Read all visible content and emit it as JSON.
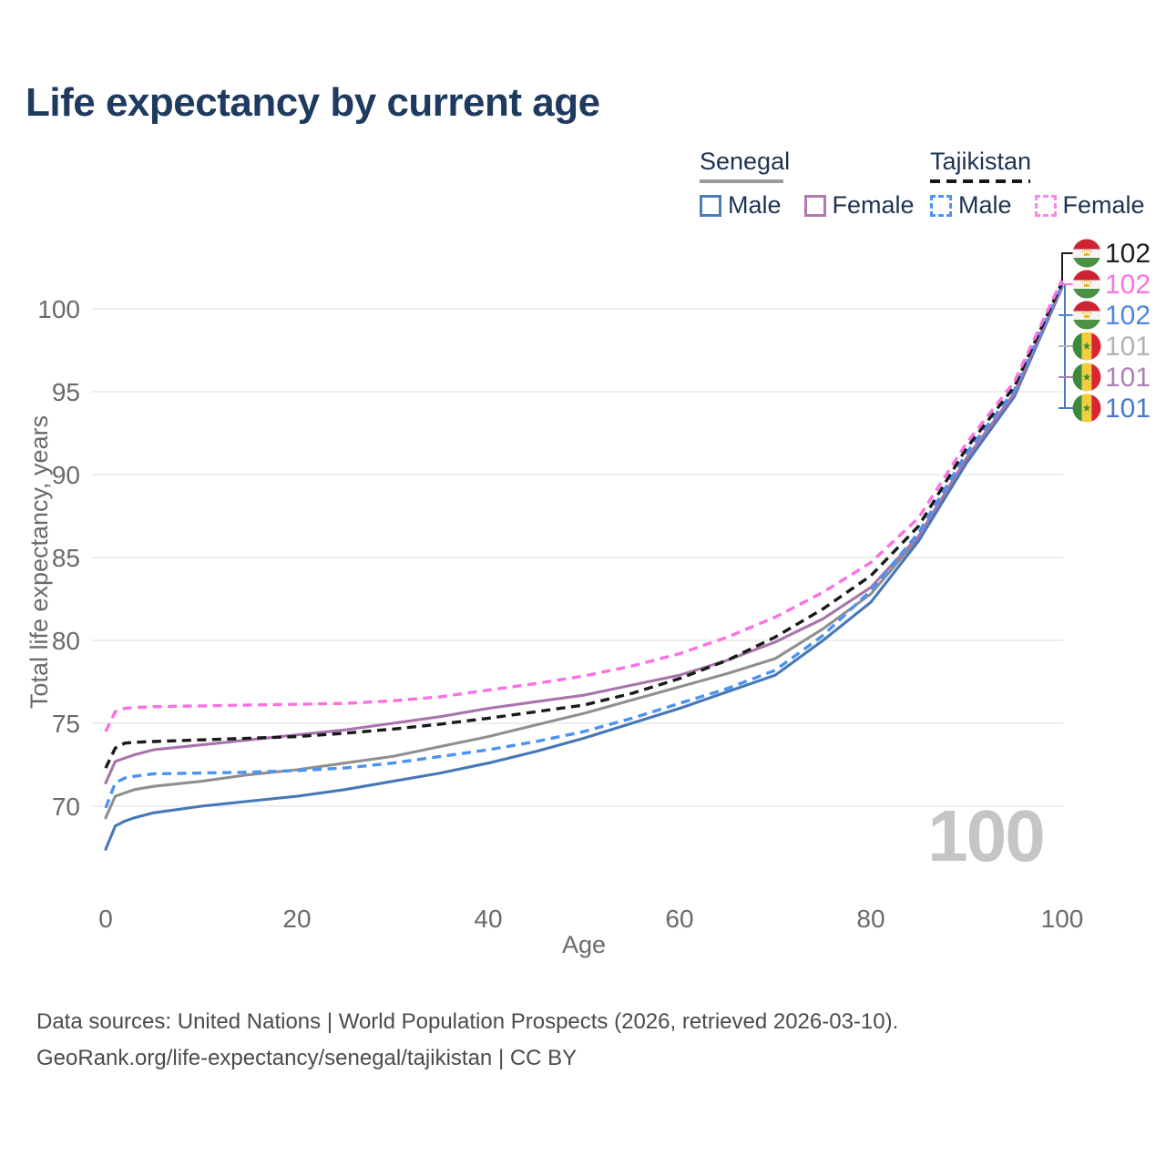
{
  "title": "Life expectancy by current age",
  "watermark": {
    "value": "100"
  },
  "legend": {
    "groups": [
      {
        "id": "senegal",
        "label": "Senegal",
        "line_style": "solid",
        "underline_color": "#9a9a9a",
        "items": [
          {
            "label": "Male",
            "color": "#4c7cba",
            "style": "solid"
          },
          {
            "label": "Female",
            "color": "#b279ae",
            "style": "solid"
          }
        ]
      },
      {
        "id": "tajikistan",
        "label": "Tajikistan",
        "line_style": "dashed",
        "underline_color": "#161616",
        "items": [
          {
            "label": "Male",
            "color": "#4d95f7",
            "style": "dashed"
          },
          {
            "label": "Female",
            "color": "#fc85e8",
            "style": "dashed"
          }
        ]
      }
    ]
  },
  "end_labels": [
    {
      "country": "tajikistan",
      "flag": "tajikistan-flag",
      "value": "102",
      "color": "#1f1f1f",
      "series": "Tajikistan Both sexes"
    },
    {
      "country": "tajikistan",
      "flag": "tajikistan-flag",
      "value": "102",
      "color": "#fb71e3",
      "series": "Tajikistan Female"
    },
    {
      "country": "tajikistan",
      "flag": "tajikistan-flag",
      "value": "102",
      "color": "#4d87e0",
      "series": "Tajikistan Male"
    },
    {
      "country": "senegal",
      "flag": "senegal-flag",
      "value": "101",
      "color": "#b3b3b3",
      "series": "Senegal Both sexes"
    },
    {
      "country": "senegal",
      "flag": "senegal-flag",
      "value": "101",
      "color": "#ae7fb6",
      "series": "Senegal Female"
    },
    {
      "country": "senegal",
      "flag": "senegal-flag",
      "value": "101",
      "color": "#4a79c4",
      "series": "Senegal Male"
    }
  ],
  "footer": {
    "line1": "Data sources: United Nations | World Population Prospects (2026, retrieved 2026-03-10).",
    "line2": "GeoRank.org/life-expectancy/senegal/tajikistan | CC BY"
  },
  "chart_data": {
    "type": "line",
    "title": "Life expectancy by current age",
    "xlabel": "Age",
    "ylabel": "Total life expectancy, years",
    "x_ticks": [
      0,
      20,
      40,
      60,
      80,
      100
    ],
    "y_ticks": [
      70,
      75,
      80,
      85,
      90,
      95,
      100
    ],
    "xlim": [
      0,
      100
    ],
    "grid": "horizontal",
    "legend_position": "top-right",
    "ages": [
      0,
      1,
      2,
      3,
      5,
      10,
      15,
      20,
      25,
      30,
      35,
      40,
      45,
      50,
      55,
      60,
      65,
      70,
      75,
      80,
      85,
      90,
      95,
      100
    ],
    "series": [
      {
        "id": "senegal-both",
        "name": "Senegal Both sexes",
        "country": "Senegal",
        "sex": "both",
        "style": "solid",
        "color": "#8f8f8f",
        "values": [
          69.3,
          70.6,
          70.8,
          71.0,
          71.2,
          71.5,
          71.9,
          72.2,
          72.6,
          73.0,
          73.6,
          74.2,
          74.9,
          75.6,
          76.4,
          77.2,
          78.0,
          78.9,
          80.7,
          82.8,
          86.2,
          90.9,
          94.8,
          101.35
        ]
      },
      {
        "id": "senegal-male",
        "name": "Senegal Male",
        "country": "Senegal",
        "sex": "male",
        "style": "solid",
        "color": "#4677b8",
        "values": [
          67.4,
          68.8,
          69.1,
          69.3,
          69.6,
          70.0,
          70.3,
          70.6,
          71.0,
          71.5,
          72.0,
          72.6,
          73.3,
          74.1,
          75.0,
          75.9,
          76.9,
          77.9,
          80.0,
          82.3,
          86.0,
          90.7,
          94.7,
          101.3
        ]
      },
      {
        "id": "senegal-female",
        "name": "Senegal Female",
        "country": "Senegal",
        "sex": "female",
        "style": "solid",
        "color": "#a874ac",
        "values": [
          71.4,
          72.7,
          72.9,
          73.1,
          73.4,
          73.7,
          74.0,
          74.3,
          74.6,
          75.0,
          75.4,
          75.9,
          76.3,
          76.7,
          77.3,
          77.9,
          78.8,
          79.9,
          81.3,
          83.2,
          86.3,
          91.0,
          94.9,
          101.4
        ]
      },
      {
        "id": "tajikistan-male",
        "name": "Tajikistan Male",
        "country": "Tajikistan",
        "sex": "male",
        "style": "dashed",
        "color": "#4b93f0",
        "values": [
          69.9,
          71.4,
          71.7,
          71.8,
          71.95,
          72.0,
          72.05,
          72.15,
          72.3,
          72.6,
          73.0,
          73.4,
          73.9,
          74.5,
          75.3,
          76.2,
          77.1,
          78.2,
          80.3,
          83.0,
          86.5,
          91.3,
          95.1,
          101.5
        ]
      },
      {
        "id": "tajikistan-both",
        "name": "Tajikistan Both sexes",
        "country": "Tajikistan",
        "sex": "both",
        "style": "dashed",
        "color": "#1a1a1a",
        "values": [
          72.3,
          73.5,
          73.8,
          73.85,
          73.9,
          74.0,
          74.1,
          74.2,
          74.4,
          74.65,
          74.95,
          75.3,
          75.7,
          76.1,
          76.8,
          77.7,
          78.8,
          80.2,
          81.9,
          83.9,
          86.9,
          91.6,
          95.3,
          101.6
        ]
      },
      {
        "id": "tajikistan-female",
        "name": "Tajikistan Female",
        "country": "Tajikistan",
        "sex": "female",
        "style": "dashed",
        "color": "#fb71e3",
        "values": [
          74.5,
          75.7,
          75.9,
          75.95,
          76.0,
          76.05,
          76.1,
          76.15,
          76.2,
          76.35,
          76.6,
          77.0,
          77.4,
          77.85,
          78.45,
          79.2,
          80.2,
          81.4,
          82.9,
          84.7,
          87.4,
          91.9,
          95.6,
          101.75
        ]
      }
    ]
  }
}
